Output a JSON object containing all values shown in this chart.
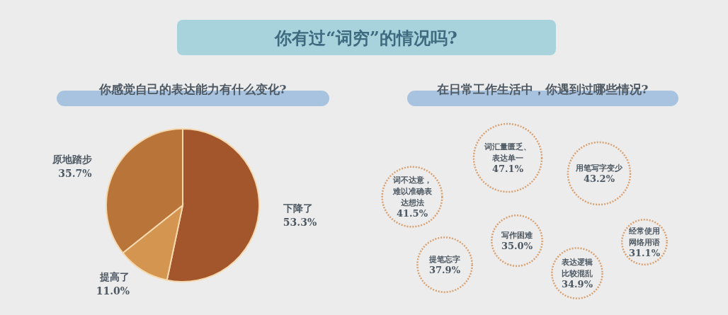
{
  "chart_data": [
    {
      "type": "pie",
      "title": "你有过“词穷”的情况吗?",
      "subtitle": "你感觉自己的表达能力有什么变化?",
      "categories": [
        "下降了",
        "提高了",
        "原地踏步"
      ],
      "values": [
        53.3,
        11.0,
        35.7
      ],
      "value_labels": [
        "53.3%",
        "11.0%",
        "35.7%"
      ],
      "colors": [
        "#a3562b",
        "#d49550",
        "#b9743a"
      ]
    },
    {
      "type": "other",
      "title": "在日常工作生活中，你遇到过哪些情况?",
      "categories": [
        "词汇量匮乏、表达单一",
        "用笔写字变少",
        "词不达意，难以准确表达想法",
        "写作困难",
        "经常使用网络用语",
        "提笔忘字",
        "表达逻辑比较混乱"
      ],
      "values": [
        47.1,
        43.2,
        41.5,
        35.0,
        31.1,
        37.9,
        34.9
      ],
      "value_labels": [
        "47.1%",
        "43.2%",
        "41.5%",
        "35.0%",
        "31.1%",
        "37.9%",
        "34.9%"
      ],
      "color": "#d9a070"
    }
  ]
}
